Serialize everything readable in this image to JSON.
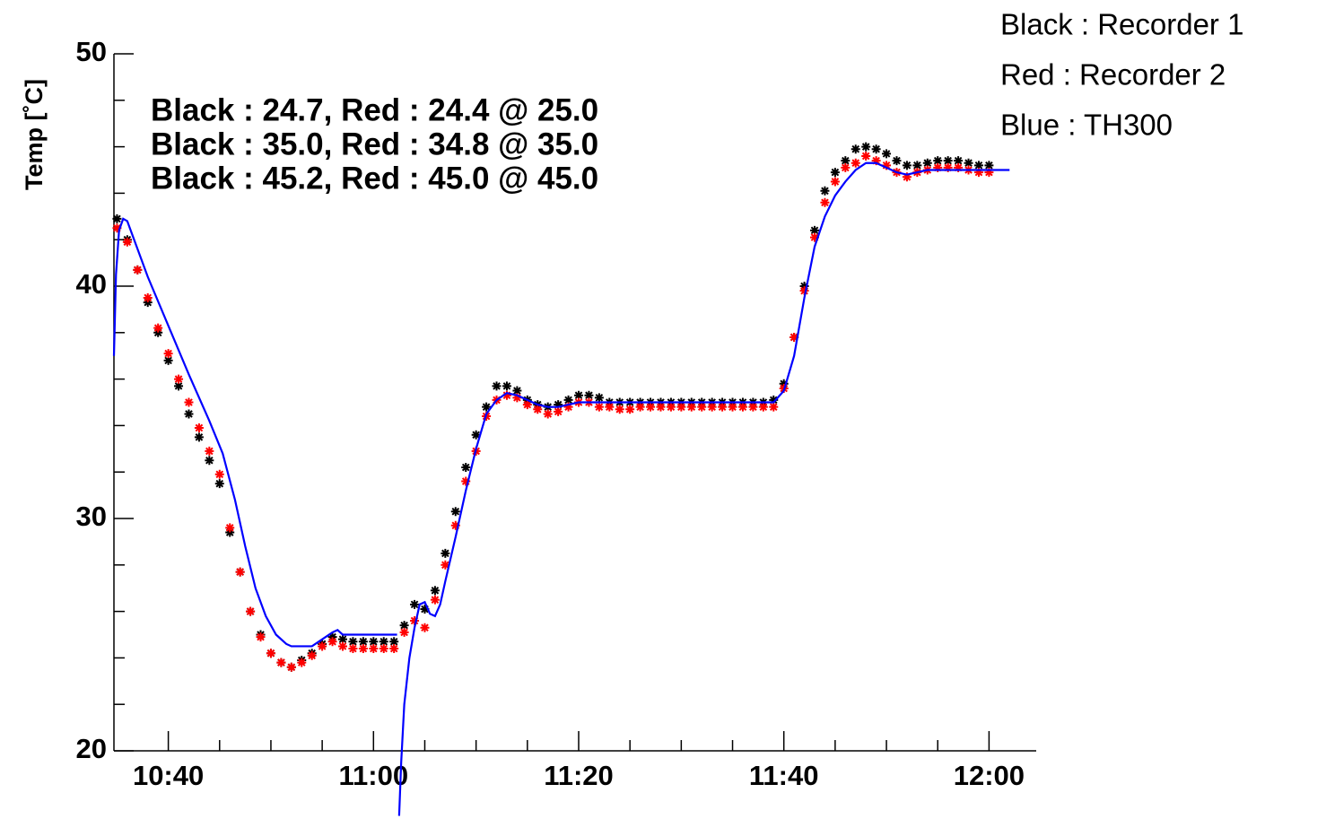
{
  "chart_data": {
    "type": "scatter",
    "y_label": "Temp [˚C]",
    "annotations": [
      "Black : 24.7, Red : 24.4 @ 25.0",
      "Black : 35.0, Red : 34.8 @ 35.0",
      "Black : 45.2, Red : 45.0 @ 45.0"
    ],
    "xlim": [
      634.7,
      724.6
    ],
    "ylim": [
      20,
      50
    ],
    "xticks": [
      {
        "value": 640,
        "label": "10:40"
      },
      {
        "value": 660,
        "label": "11:00"
      },
      {
        "value": 680,
        "label": "11:20"
      },
      {
        "value": 700,
        "label": "11:40"
      },
      {
        "value": 720,
        "label": "12:00"
      }
    ],
    "x_minor_ticks": [
      645,
      650,
      655,
      665,
      670,
      675,
      685,
      690,
      695,
      705,
      710,
      715
    ],
    "yticks": [
      20,
      30,
      40,
      50
    ],
    "y_minor_ticks": [
      22,
      24,
      26,
      28,
      32,
      34,
      36,
      38,
      42,
      44,
      46,
      48
    ],
    "series": [
      {
        "name": "Black : Recorder 1",
        "color": "#000000",
        "mode": "markers",
        "x": [
          635,
          636,
          637,
          638,
          639,
          640,
          641,
          642,
          643,
          644,
          645,
          646,
          647,
          648,
          649,
          650,
          651,
          652,
          653,
          654,
          655,
          656,
          657,
          658,
          659,
          660,
          661,
          662,
          663,
          664,
          665,
          666,
          667,
          668,
          669,
          670,
          671,
          672,
          673,
          674,
          675,
          676,
          677,
          678,
          679,
          680,
          681,
          682,
          683,
          684,
          685,
          686,
          687,
          688,
          689,
          690,
          691,
          692,
          693,
          694,
          695,
          696,
          697,
          698,
          699,
          700,
          701,
          702,
          703,
          704,
          705,
          706,
          707,
          708,
          709,
          710,
          711,
          712,
          713,
          714,
          715,
          716,
          717,
          718,
          719,
          720
        ],
        "values": [
          42.9,
          42.0,
          40.7,
          39.3,
          38.0,
          36.8,
          35.7,
          34.5,
          33.5,
          32.5,
          31.5,
          29.4,
          27.7,
          26.0,
          25.0,
          24.2,
          23.8,
          23.6,
          23.9,
          24.2,
          24.6,
          24.9,
          24.8,
          24.7,
          24.7,
          24.7,
          24.7,
          24.7,
          25.4,
          26.3,
          26.1,
          26.9,
          28.5,
          30.3,
          32.2,
          33.6,
          34.8,
          35.7,
          35.7,
          35.5,
          35.1,
          34.9,
          34.8,
          34.9,
          35.1,
          35.3,
          35.3,
          35.2,
          35.0,
          35.0,
          35.0,
          35.0,
          35.0,
          35.0,
          35.0,
          35.0,
          35.0,
          35.0,
          35.0,
          35.0,
          35.0,
          35.0,
          35.0,
          35.0,
          35.1,
          35.8,
          37.8,
          40.0,
          42.4,
          44.1,
          44.9,
          45.4,
          45.9,
          46.0,
          45.9,
          45.7,
          45.4,
          45.2,
          45.2,
          45.3,
          45.4,
          45.4,
          45.4,
          45.3,
          45.2,
          45.2
        ]
      },
      {
        "name": "Red : Recorder 2",
        "color": "#ff0000",
        "mode": "markers",
        "x": [
          635,
          636,
          637,
          638,
          639,
          640,
          641,
          642,
          643,
          644,
          645,
          646,
          647,
          648,
          649,
          650,
          651,
          652,
          653,
          654,
          655,
          656,
          657,
          658,
          659,
          660,
          661,
          662,
          663,
          664,
          665,
          666,
          667,
          668,
          669,
          670,
          671,
          672,
          673,
          674,
          675,
          676,
          677,
          678,
          679,
          680,
          681,
          682,
          683,
          684,
          685,
          686,
          687,
          688,
          689,
          690,
          691,
          692,
          693,
          694,
          695,
          696,
          697,
          698,
          699,
          700,
          701,
          702,
          703,
          704,
          705,
          706,
          707,
          708,
          709,
          710,
          711,
          712,
          713,
          714,
          715,
          716,
          717,
          718,
          719,
          720
        ],
        "values": [
          42.5,
          41.9,
          40.7,
          39.5,
          38.2,
          37.1,
          36.0,
          35.0,
          33.9,
          32.9,
          31.9,
          29.6,
          27.7,
          26.0,
          24.9,
          24.2,
          23.8,
          23.6,
          23.8,
          24.1,
          24.5,
          24.7,
          24.5,
          24.4,
          24.4,
          24.4,
          24.4,
          24.4,
          25.1,
          25.6,
          25.3,
          26.5,
          28.0,
          29.7,
          31.6,
          32.9,
          34.4,
          35.1,
          35.3,
          35.2,
          34.9,
          34.7,
          34.5,
          34.6,
          34.8,
          35.0,
          35.0,
          34.8,
          34.8,
          34.7,
          34.7,
          34.8,
          34.8,
          34.8,
          34.8,
          34.8,
          34.8,
          34.8,
          34.8,
          34.8,
          34.8,
          34.8,
          34.8,
          34.8,
          34.8,
          35.6,
          37.8,
          39.8,
          42.1,
          43.6,
          44.5,
          45.1,
          45.3,
          45.6,
          45.4,
          45.2,
          44.9,
          44.7,
          44.9,
          45.0,
          45.1,
          45.1,
          45.1,
          45.0,
          44.9,
          44.9
        ]
      },
      {
        "name": "Blue : TH300",
        "color": "#0000ff",
        "mode": "line",
        "x": [
          634.7,
          634.9,
          635.2,
          635.6,
          636.0,
          638,
          640,
          642,
          644,
          645.3,
          646.5,
          647.5,
          648.5,
          649.5,
          650.5,
          651.5,
          652,
          654,
          655,
          656,
          656.5,
          657,
          662.3,
          null,
          662.5,
          662.7,
          663,
          663.5,
          664,
          664.5,
          665,
          665.5,
          666,
          666.5,
          667,
          668,
          669,
          670,
          671,
          672,
          673,
          674,
          675,
          676,
          677,
          678,
          679,
          680,
          699,
          700,
          701,
          702,
          703,
          704,
          705,
          706,
          707,
          708,
          709,
          710,
          711,
          712,
          713,
          714,
          722
        ],
        "values": [
          37.0,
          40.5,
          42.4,
          42.9,
          42.8,
          40.4,
          38.3,
          36.2,
          34.2,
          32.8,
          30.8,
          28.8,
          27.0,
          25.8,
          25.0,
          24.6,
          24.5,
          24.5,
          24.8,
          25.1,
          25.2,
          25.0,
          25.0,
          null,
          17.2,
          19.5,
          22.0,
          24.0,
          25.3,
          26.3,
          26.4,
          25.9,
          25.8,
          26.3,
          27.3,
          29.2,
          31.2,
          33.0,
          34.5,
          35.1,
          35.4,
          35.3,
          35.1,
          34.9,
          34.8,
          34.8,
          34.9,
          35.0,
          35.0,
          35.5,
          37.0,
          39.5,
          41.7,
          43.0,
          43.9,
          44.5,
          45.0,
          45.3,
          45.3,
          45.1,
          44.9,
          44.8,
          44.9,
          45.0,
          45.0
        ]
      }
    ]
  }
}
